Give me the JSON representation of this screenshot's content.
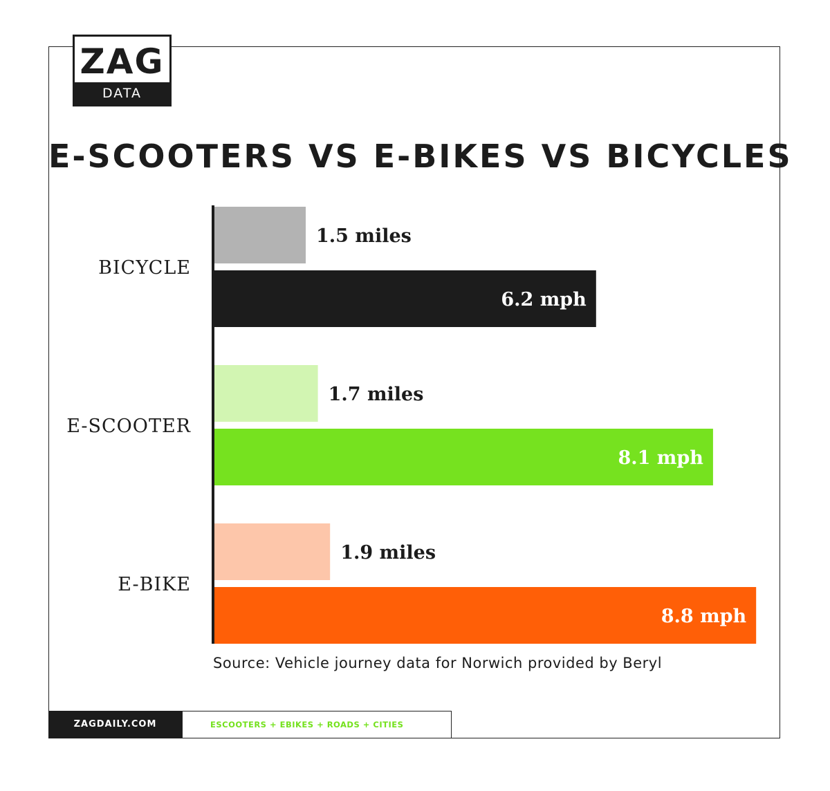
{
  "brand": {
    "logo_word": "ZAG",
    "logo_sub": "DATA",
    "site": "ZAGDAILY.COM",
    "tags": "ESCOOTERS + EBIKES + ROADS + CITIES"
  },
  "chart_data": {
    "type": "bar",
    "orientation": "horizontal",
    "title": "E-SCOOTERS VS E-BIKES VS BICYCLES",
    "categories": [
      "BICYCLE",
      "E-SCOOTER",
      "E-BIKE"
    ],
    "series": [
      {
        "measure": "distance",
        "values": [
          1.5,
          1.7,
          1.9
        ],
        "labels": [
          "1.5 miles",
          "1.7 miles",
          "1.9 miles"
        ],
        "colors": [
          "#b3b3b3",
          "#d2f5b2",
          "#fdc6aa"
        ]
      },
      {
        "measure": "speed",
        "values": [
          6.2,
          8.1,
          8.8
        ],
        "labels": [
          "6.2 mph",
          "8.1 mph",
          "8.8 mph"
        ],
        "colors": [
          "#1c1c1c",
          "#76e21f",
          "#ff5f07"
        ]
      }
    ],
    "source": "Source: Vehicle journey data for Norwich provided by Beryl",
    "grid": false,
    "legend": "none"
  }
}
